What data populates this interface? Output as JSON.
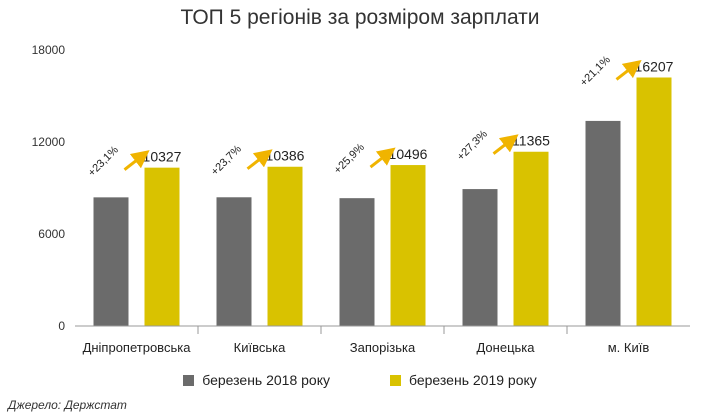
{
  "chart_data": {
    "type": "bar",
    "title": "ТОП 5 регіонів за розміром зарплати",
    "categories": [
      "Дніпропетровська",
      "Київська",
      "Запорізька",
      "Донецька",
      "м. Київ"
    ],
    "series": [
      {
        "name": "березень 2018 року",
        "values": [
          8390,
          8395,
          8337,
          8930,
          13375
        ],
        "color": "#6b6b6b"
      },
      {
        "name": "березень 2019 року",
        "values": [
          10327,
          10386,
          10496,
          11365,
          16207
        ],
        "color": "#d9c200"
      }
    ],
    "value_labels": [
      "10327",
      "10386",
      "10496",
      "11365",
      "16207"
    ],
    "growth_labels": [
      "+23,1%",
      "+23,7%",
      "+25,9%",
      "+27,3%",
      "+21,1%"
    ],
    "yticks": [
      "0",
      "6000",
      "12000",
      "18000"
    ],
    "ylim": [
      0,
      18000
    ],
    "xlabel": "",
    "ylabel": "",
    "grid": false,
    "legend_position": "bottom",
    "arrow_color": "#f0b400"
  },
  "source": "Джерело: Держстат"
}
